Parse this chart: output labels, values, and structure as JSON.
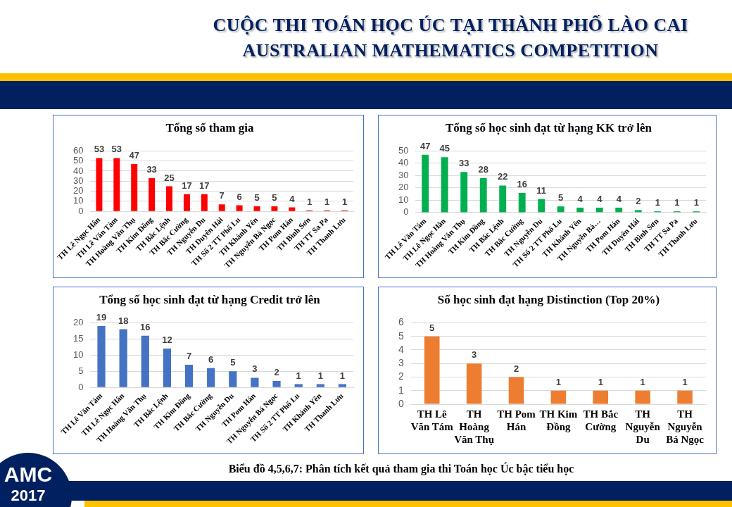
{
  "chart_data": [
    {
      "type": "bar",
      "title": "Tổng số tham gia",
      "categories": [
        "TH Lê Ngọc Hân",
        "TH Lê Văn Tám",
        "TH Hoàng Văn Thụ",
        "TH Kim Đồng",
        "TH Bắc Lệnh",
        "TH Bắc Cường",
        "TH Nguyễn Du",
        "TH Duyên Hải",
        "TH Số 2 TT Phố Lu",
        "TH Khánh Yên",
        "TH Nguyễn Bá Ngọc",
        "TH Pom Hán",
        "TH Bình Sơn",
        "TH TT Sa Pa",
        "TH Thanh Lưu"
      ],
      "values": [
        53,
        53,
        47,
        33,
        25,
        17,
        17,
        7,
        6,
        5,
        5,
        4,
        1,
        1,
        1
      ],
      "color": "#ff0000",
      "ylim": [
        0,
        60
      ],
      "yticks": [
        0,
        10,
        20,
        30,
        40,
        50,
        60
      ],
      "grid": "y",
      "data_labels": true,
      "annotations": [
        "CUỘC THI TOÁN HỌC ÚC TẠI THÀNH PHỐ LÀO CAI",
        "AUSTRALIAN MATHEMATICS COMPETITION"
      ]
    },
    {
      "type": "bar",
      "title": "Tổng số học sinh đạt từ hạng KK trở lên",
      "categories": [
        "TH Lê Văn Tám",
        "TH Lê Ngọc Hân",
        "TH Hoàng Văn Thụ",
        "TH Kim Đồng",
        "TH Bắc Lệnh",
        "TH Bắc Cường",
        "TH Nguyễn Du",
        "TH Số 2 TT Phố Lu",
        "TH Khánh Yên",
        "TH Nguyễn Bá…",
        "TH Pom Hán",
        "TH Duyên Hải",
        "TH Bình Sơn",
        "TH TT Sa Pa",
        "TH Thanh Lưu"
      ],
      "values": [
        47,
        45,
        33,
        28,
        22,
        16,
        11,
        5,
        4,
        4,
        4,
        2,
        1,
        1,
        1
      ],
      "color": "#00b050",
      "ylim": [
        0,
        50
      ],
      "yticks": [
        0,
        10,
        20,
        30,
        40,
        50
      ],
      "grid": "y",
      "data_labels": true
    },
    {
      "type": "bar",
      "title": "Tổng số học sinh đạt từ hạng Credit trở lên",
      "categories": [
        "TH Lê Văn Tám",
        "TH Lê Ngọc Hân",
        "TH Hoàng Văn Thụ",
        "TH Bắc Lệnh",
        "TH Kim Đồng",
        "TH Bắc Cường",
        "TH Nguyễn Du",
        "TH Pom Hán",
        "TH Nguyễn Bá Ngọc",
        "TH Số 2 TT Phố Lu",
        "TH Khánh Yên",
        "TH Thanh Lưu"
      ],
      "values": [
        19,
        18,
        16,
        12,
        7,
        6,
        5,
        3,
        2,
        1,
        1,
        1
      ],
      "color": "#4472c4",
      "ylim": [
        0,
        20
      ],
      "yticks": [
        0,
        5,
        10,
        15,
        20
      ],
      "grid": "y",
      "data_labels": true,
      "annotations": [
        "AMC",
        "2017"
      ]
    },
    {
      "type": "bar",
      "title": "Số học sinh đạt hạng Distinction (Top 20%)",
      "categories": [
        "TH Lê Văn Tám",
        "TH Hoàng Văn Thụ",
        "TH Pom Hán",
        "TH Kim Đồng",
        "TH Bắc Cường",
        "TH Nguyễn Du",
        "TH Nguyễn Bá Ngọc"
      ],
      "values": [
        5,
        3,
        2,
        1,
        1,
        1,
        1
      ],
      "color": "#ed7d31",
      "ylim": [
        0,
        6
      ],
      "yticks": [
        0,
        1,
        2,
        3,
        4,
        5,
        6
      ],
      "grid": "y",
      "data_labels": true,
      "annotations": [
        "Biểu đồ 4,5,6,7: Phân tích kết quả tham gia thi Toán học Úc bậc tiểu học"
      ]
    }
  ]
}
